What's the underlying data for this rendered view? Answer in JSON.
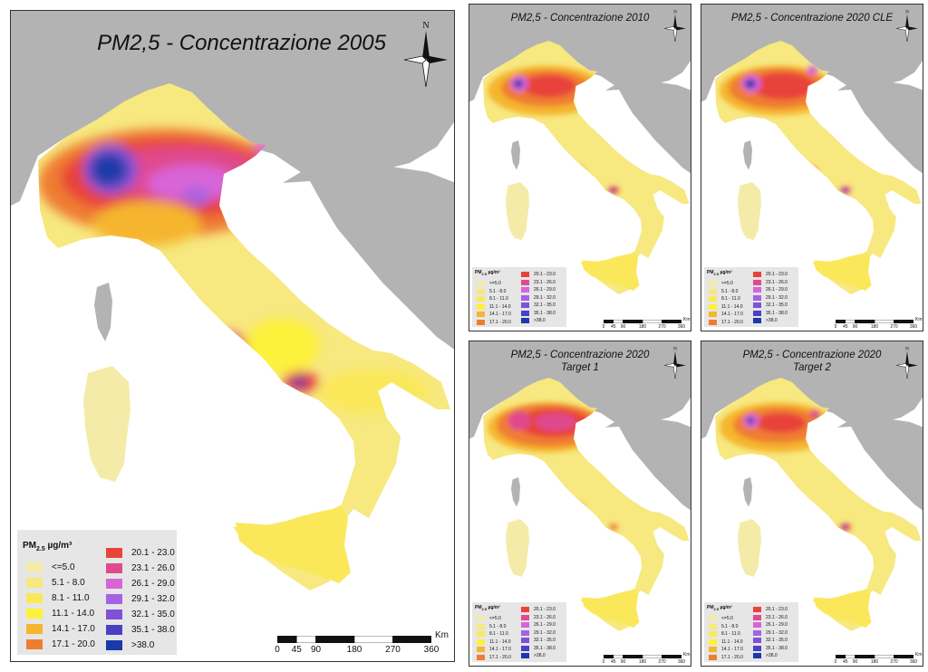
{
  "panels": [
    {
      "id": "main",
      "title_line1": "PM2,5 - Concentrazione 2005",
      "title_line2": ""
    },
    {
      "id": "p2010",
      "title_line1": "PM2,5 - Concentrazione 2010",
      "title_line2": ""
    },
    {
      "id": "p2020cle",
      "title_line1": "PM2,5 - Concentrazione 2020 CLE",
      "title_line2": ""
    },
    {
      "id": "p2020t1",
      "title_line1": "PM2,5 - Concentrazione 2020",
      "title_line2": "Target 1"
    },
    {
      "id": "p2020t2",
      "title_line1": "PM2,5 - Concentrazione 2020",
      "title_line2": "Target 2"
    }
  ],
  "compass_label": "N",
  "legend": {
    "title_main": "PM",
    "title_sub": "2.5",
    "title_unit": " µg/m³",
    "classes": [
      {
        "label": "<=5.0",
        "color": "#f4eba8"
      },
      {
        "label": "5.1 - 8.0",
        "color": "#f7e880"
      },
      {
        "label": "8.1 - 11.0",
        "color": "#fae85a"
      },
      {
        "label": "11.1 - 14.0",
        "color": "#fdf23a"
      },
      {
        "label": "14.1 - 17.0",
        "color": "#f5b52e"
      },
      {
        "label": "17.1 - 20.0",
        "color": "#ef7d31"
      },
      {
        "label": "20.1 - 23.0",
        "color": "#e8433a"
      },
      {
        "label": "23.1 - 26.0",
        "color": "#e04a8c"
      },
      {
        "label": "26.1 - 29.0",
        "color": "#d765d8"
      },
      {
        "label": "29.1 - 32.0",
        "color": "#a563e3"
      },
      {
        "label": "32.1 - 35.0",
        "color": "#7e52d6"
      },
      {
        "label": "35.1 - 38.0",
        "color": "#4b3fc2"
      },
      {
        "label": ">38.0",
        "color": "#1b3aa8"
      }
    ]
  },
  "scale": {
    "ticks": [
      "0",
      "45",
      "90",
      "180",
      "270",
      "360"
    ],
    "unit": "Km"
  },
  "colors": {
    "land_outside": "#b3b3b3",
    "sea": "#ffffff",
    "border": "#333333"
  }
}
